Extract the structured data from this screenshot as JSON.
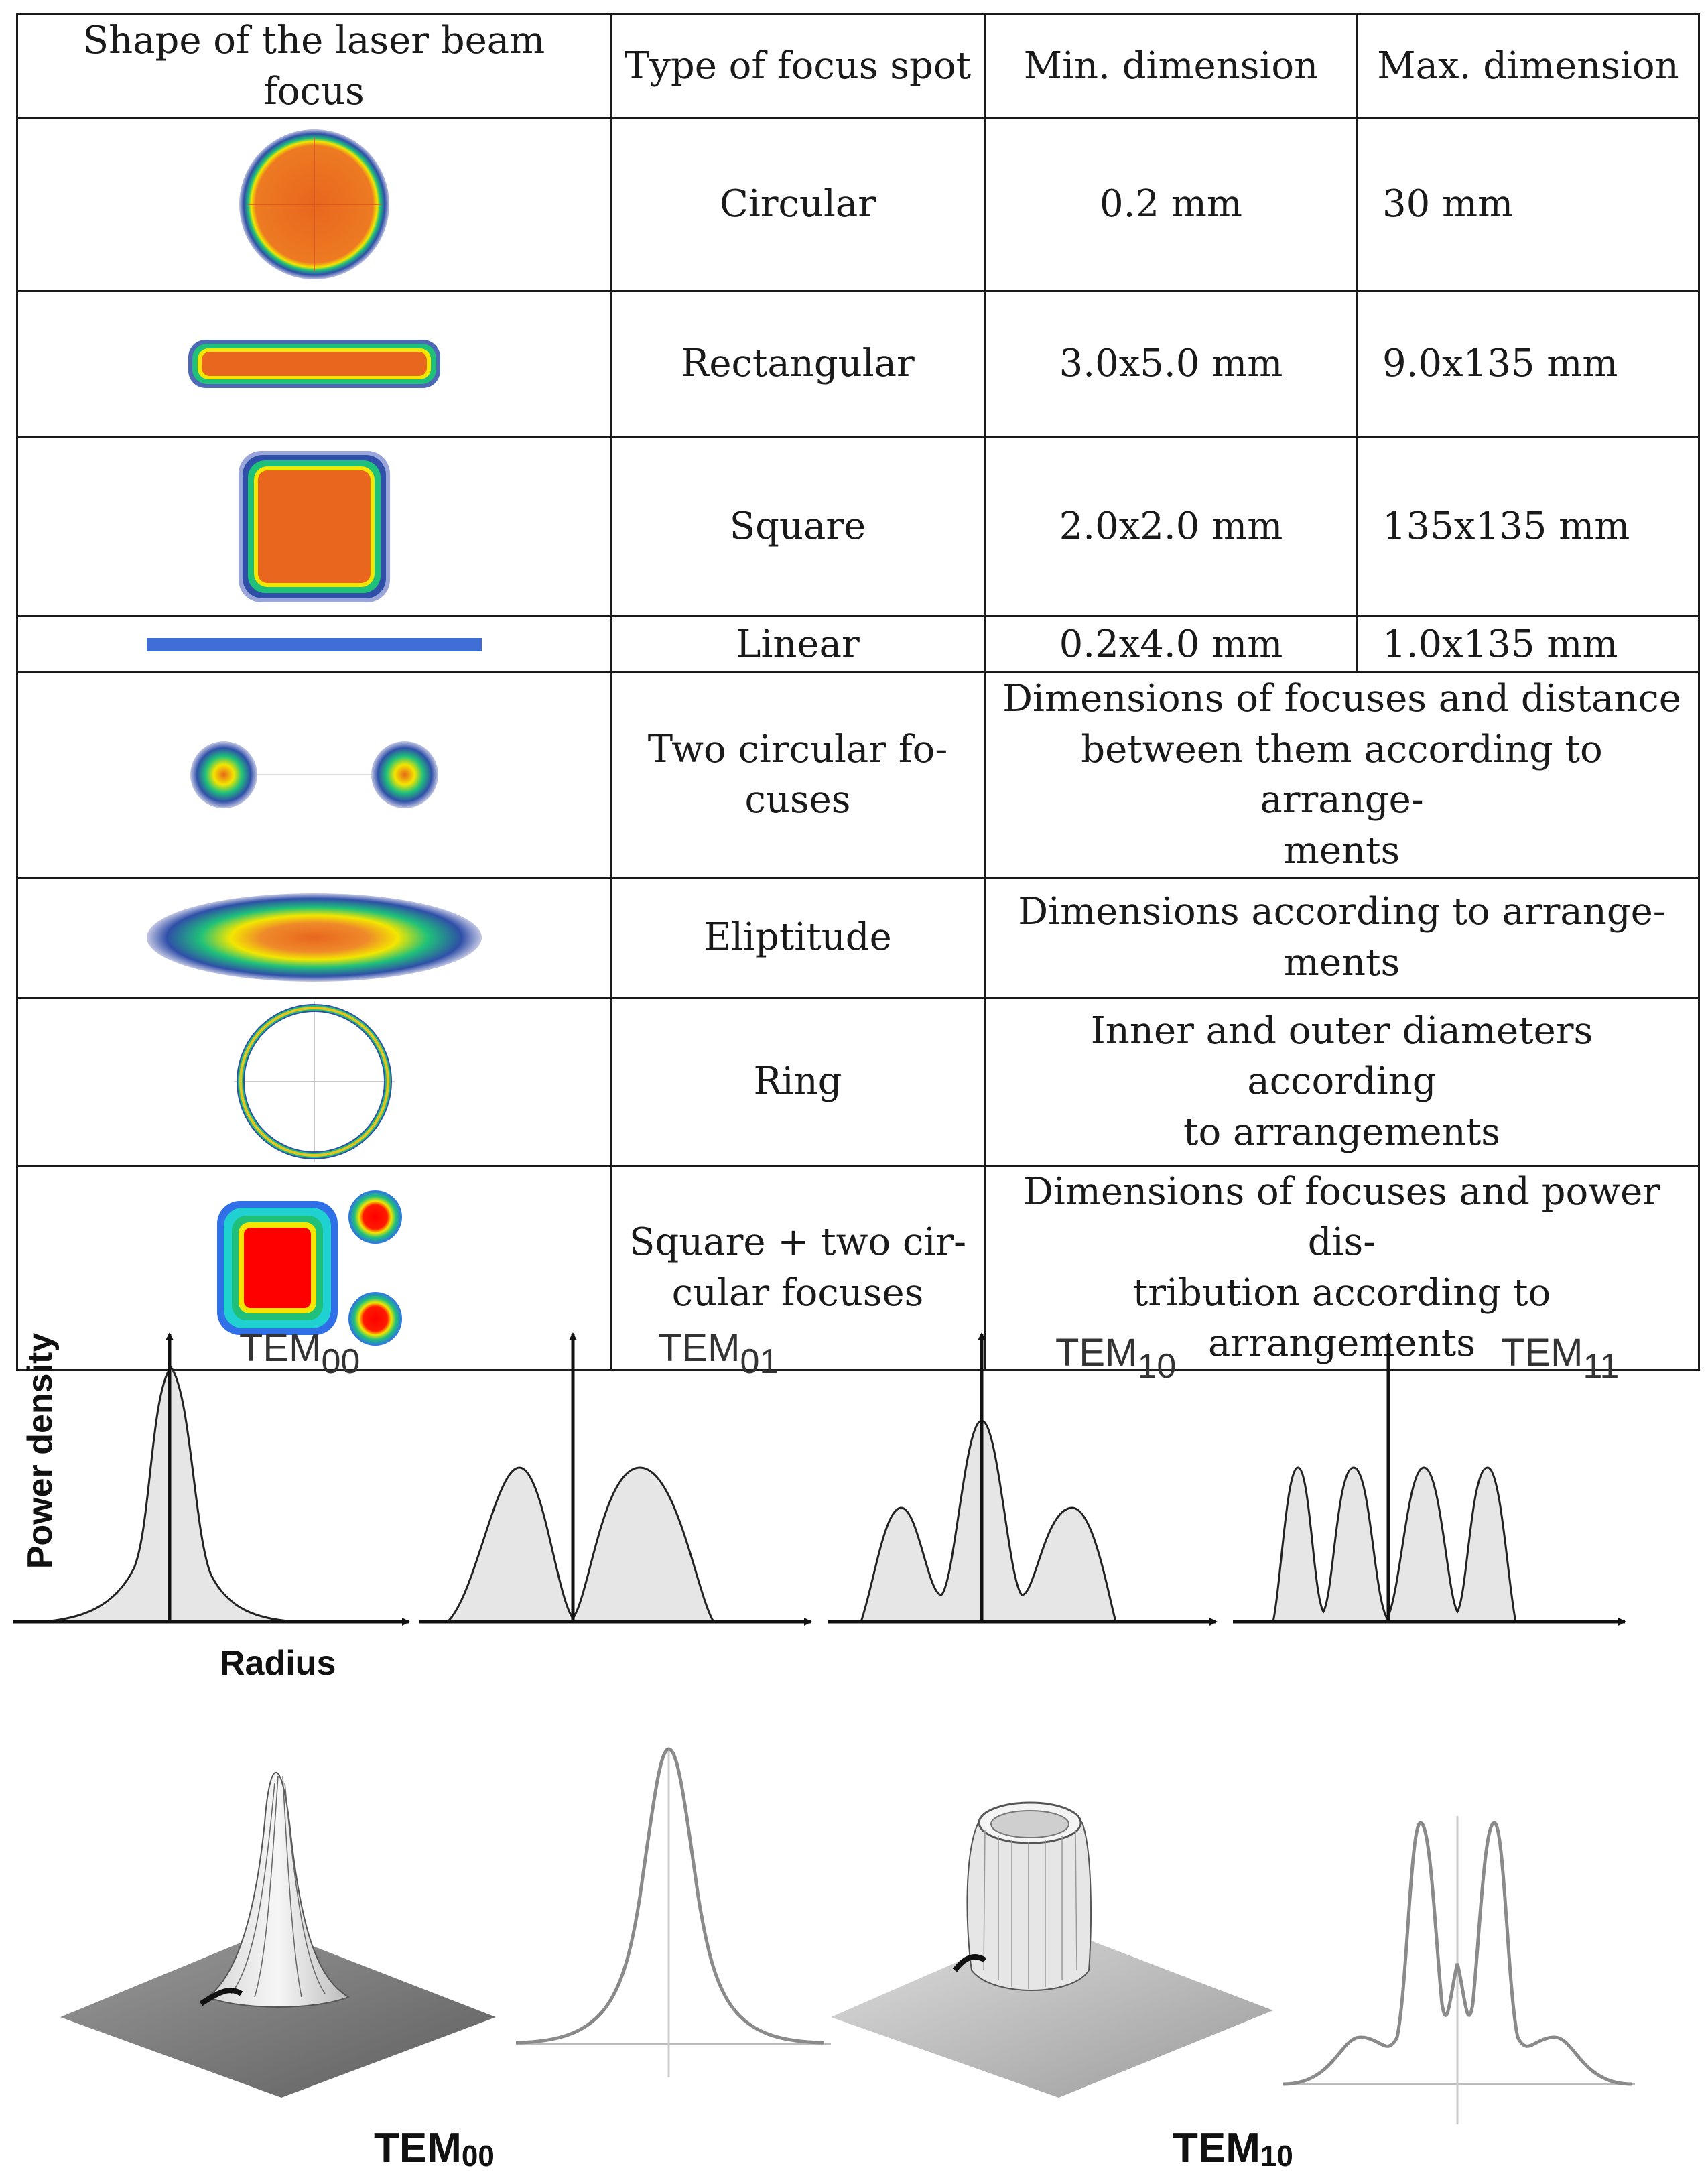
{
  "table": {
    "headers": [
      "Shape of the laser beam focus",
      "Type of focus spot",
      "Min. dimension",
      "Max. dimension"
    ],
    "rows": [
      {
        "type": "Circular",
        "min": "0.2 mm",
        "max": "30 mm"
      },
      {
        "type": "Rectangular",
        "min": "3.0x5.0 mm",
        "max": "9.0x135 mm"
      },
      {
        "type": "Square",
        "min": "2.0x2.0 mm",
        "max": "135x135 mm"
      },
      {
        "type": "Linear",
        "min": "0.2x4.0 mm",
        "max": "1.0x135 mm"
      },
      {
        "type_line1": "Two circular fo-",
        "type_line2": "cuses",
        "dims_line1": "Dimensions of focuses and distance",
        "dims_line2": "between them according to arrange-",
        "dims_line3": "ments"
      },
      {
        "type": "Eliptitude",
        "dims_line1": "Dimensions according to arrange-",
        "dims_line2": "ments"
      },
      {
        "type": "Ring",
        "dims_line1": "Inner and outer diameters according",
        "dims_line2": "to arrangements"
      },
      {
        "type_line1": "Square + two cir-",
        "type_line2": "cular focuses",
        "dims_line1": "Dimensions of focuses and power dis-",
        "dims_line2": "tribution according to arrangements"
      }
    ]
  },
  "modes": {
    "y_axis_label": "Power density",
    "x_axis_label": "Radius",
    "plots": [
      {
        "prefix": "TEM",
        "sub": "00"
      },
      {
        "prefix": "TEM",
        "sub": "01"
      },
      {
        "prefix": "TEM",
        "sub": "10"
      },
      {
        "prefix": "TEM",
        "sub": "11"
      }
    ]
  },
  "profiles": {
    "label_a": {
      "prefix": "TEM",
      "sub": "00"
    },
    "label_b": {
      "prefix": "TEM",
      "sub": "10"
    }
  },
  "colors": {
    "beam_center": "#e8661e",
    "beam_yellow": "#f3e600",
    "beam_green": "#1fc17a",
    "beam_blue": "#2f4fa8",
    "linear_bar": "#3f6fd6"
  }
}
